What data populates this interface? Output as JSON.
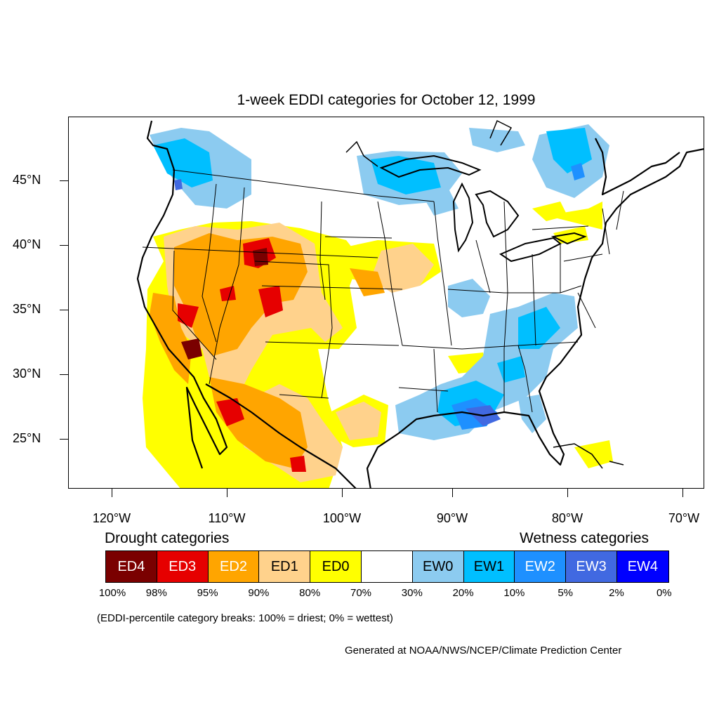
{
  "title": "1-week EDDI categories for October 12, 1999",
  "lat_ticks": [
    "45°N",
    "40°N",
    "35°N",
    "30°N",
    "25°N"
  ],
  "lon_ticks": [
    "120°W",
    "110°W",
    "100°W",
    "90°W",
    "80°W",
    "70°W"
  ],
  "legend": {
    "drought_heading": "Drought categories",
    "wetness_heading": "Wetness categories",
    "categories": [
      {
        "label": "ED4",
        "color": "#7a0000",
        "text_color": "#ffffff"
      },
      {
        "label": "ED3",
        "color": "#e60000",
        "text_color": "#ffffff"
      },
      {
        "label": "ED2",
        "color": "#ffa500",
        "text_color": "#ffffff"
      },
      {
        "label": "ED1",
        "color": "#ffd28c",
        "text_color": "#000000"
      },
      {
        "label": "ED0",
        "color": "#ffff00",
        "text_color": "#000000"
      },
      {
        "label": "",
        "color": "#ffffff",
        "text_color": "#000000"
      },
      {
        "label": "EW0",
        "color": "#8ccbf0",
        "text_color": "#000000"
      },
      {
        "label": "EW1",
        "color": "#00bfff",
        "text_color": "#000000"
      },
      {
        "label": "EW2",
        "color": "#1e90ff",
        "text_color": "#ffffff"
      },
      {
        "label": "EW3",
        "color": "#4169e1",
        "text_color": "#ffffff"
      },
      {
        "label": "EW4",
        "color": "#0000ff",
        "text_color": "#ffffff"
      }
    ],
    "percentiles": [
      "100%",
      "98%",
      "95%",
      "90%",
      "80%",
      "70%",
      "30%",
      "20%",
      "10%",
      "5%",
      "2%",
      "0%"
    ]
  },
  "note": "(EDDI-percentile category breaks: 100% = driest; 0% = wettest)",
  "credit": "Generated at NOAA/NWS/NCEP/Climate Prediction Center"
}
